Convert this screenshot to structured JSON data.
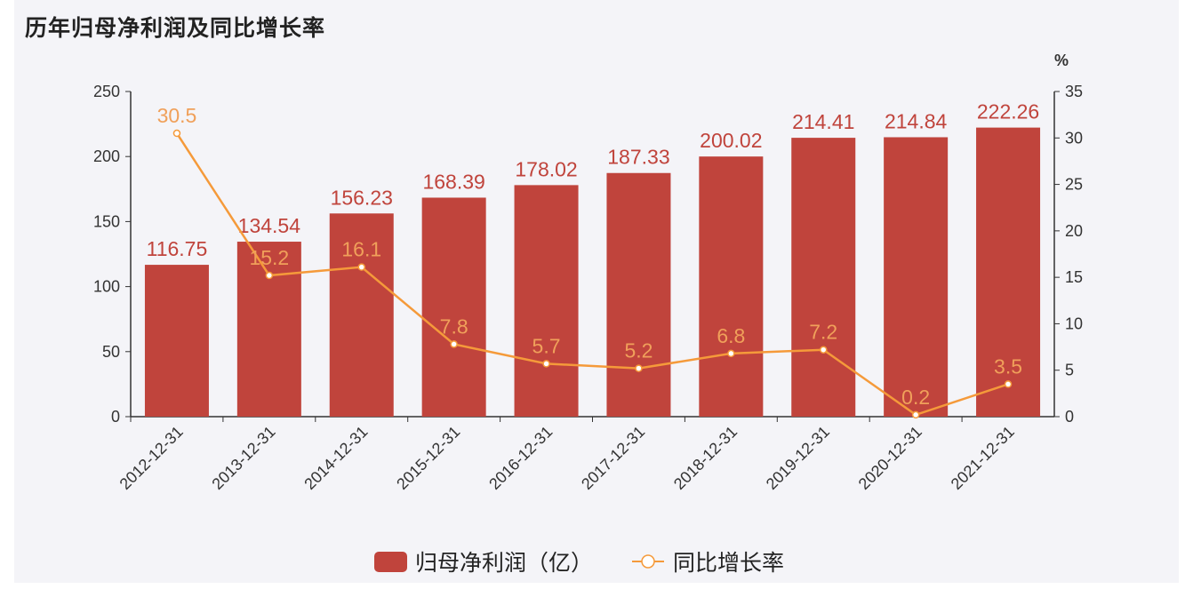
{
  "title": "历年归母净利润及同比增长率",
  "chart_data": {
    "type": "bar",
    "title": "历年归母净利润及同比增长率",
    "categories": [
      "2012-12-31",
      "2013-12-31",
      "2014-12-31",
      "2015-12-31",
      "2016-12-31",
      "2017-12-31",
      "2018-12-31",
      "2019-12-31",
      "2020-12-31",
      "2021-12-31"
    ],
    "series": [
      {
        "name": "归母净利润（亿）",
        "type": "bar",
        "axis": "left",
        "color": "#c0443c",
        "values": [
          116.75,
          134.54,
          156.23,
          168.39,
          178.02,
          187.33,
          200.02,
          214.41,
          214.84,
          222.26
        ]
      },
      {
        "name": "同比增长率",
        "type": "line",
        "axis": "right",
        "color": "#f59a3a",
        "values": [
          30.5,
          15.2,
          16.1,
          7.8,
          5.7,
          5.2,
          6.8,
          7.2,
          0.2,
          3.5
        ]
      }
    ],
    "left_axis": {
      "ylim": [
        0,
        250
      ],
      "ticks": [
        0,
        50,
        100,
        150,
        200,
        250
      ]
    },
    "right_axis": {
      "label": "%",
      "ylim": [
        0,
        35
      ],
      "ticks": [
        0,
        5,
        10,
        15,
        20,
        25,
        30,
        35
      ]
    },
    "legend_position": "bottom-center",
    "grid": false
  }
}
